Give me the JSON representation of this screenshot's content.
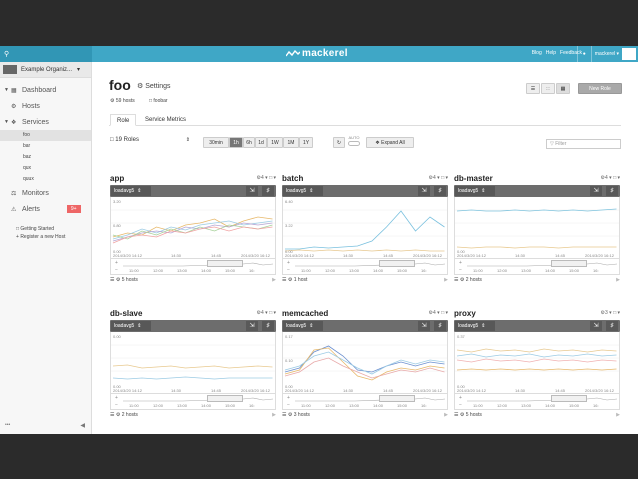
{
  "topbar": {
    "search_icon": "search-icon",
    "logo_text": "mackerel",
    "links": [
      "Blog",
      "Help",
      "Feedback"
    ],
    "user": "mackerel",
    "accent": "#3fa7c6"
  },
  "sidebar": {
    "org_name": "Example Organiz...",
    "nav": [
      {
        "label": "Dashboard",
        "icon": "dashboard-icon"
      },
      {
        "label": "Hosts",
        "icon": "hosts-icon"
      },
      {
        "label": "Services",
        "icon": "services-icon"
      }
    ],
    "services": [
      "foo",
      "bar",
      "baz",
      "qux",
      "quux"
    ],
    "monitors": "Monitors",
    "alerts": "Alerts",
    "alerts_badge": "9+",
    "getting_started": "Getting Started",
    "register_host": "Register a new Host",
    "footer": "•••"
  },
  "header": {
    "title": "foo",
    "settings": "Settings",
    "hosts": "59 hosts",
    "service": "foobar",
    "new_role": "New Role"
  },
  "tabs": [
    "Role",
    "Service Metrics"
  ],
  "toolbar": {
    "roles": "19 Roles",
    "ranges": [
      "30min",
      "1h",
      "6h",
      "1d",
      "1W",
      "1M",
      "1Y"
    ],
    "auto": "AUTO",
    "expand": "Expand All",
    "filter_placeholder": "Filter"
  },
  "panels": [
    {
      "title": "app",
      "count": "4",
      "metric": "loadavg5",
      "y": [
        "3.20",
        "0.80",
        "0.00"
      ],
      "start": "2014/3/20 14:12",
      "end": "2014/3/20 16:12",
      "ticks": [
        "14:30",
        "14:45"
      ],
      "nav": [
        "11:00",
        "12:00",
        "13:00",
        "14:00",
        "15:00",
        "16:"
      ],
      "hosts": "5 hosts"
    },
    {
      "title": "batch",
      "count": "4",
      "metric": "loadavg5",
      "y": [
        "6.40",
        "3.22",
        "0.00"
      ],
      "start": "2014/3/20 14:12",
      "end": "2014/3/20 16:12",
      "ticks": [
        "14:30",
        "14:45"
      ],
      "nav": [
        "11:00",
        "12:00",
        "13:00",
        "14:00",
        "15:00",
        "16:"
      ],
      "hosts": "1 host"
    },
    {
      "title": "db-master",
      "count": "4",
      "metric": "loadavg5",
      "y": [
        "0.00"
      ],
      "start": "2014/3/20 14:12",
      "end": "2014/3/20 16:12",
      "ticks": [
        "14:30",
        "14:45"
      ],
      "nav": [
        "11:00",
        "12:00",
        "13:00",
        "14:00",
        "15:00",
        "16:"
      ],
      "hosts": "2 hosts"
    },
    {
      "title": "db-slave",
      "count": "4",
      "metric": "loadavg5",
      "y": [
        "0.00",
        "0.00"
      ],
      "start": "2014/3/20 14:12",
      "end": "2014/3/20 16:12",
      "ticks": [
        "14:30",
        "14:45"
      ],
      "nav": [
        "11:00",
        "12:00",
        "13:00",
        "14:00",
        "15:00",
        "16:"
      ],
      "hosts": "2 hosts"
    },
    {
      "title": "memcached",
      "count": "4",
      "metric": "loadavg5",
      "y": [
        "0.17",
        "0.10",
        "0.00"
      ],
      "start": "2014/3/20 14:12",
      "end": "2014/3/20 16:12",
      "ticks": [
        "14:30",
        "14:45"
      ],
      "nav": [
        "11:00",
        "12:00",
        "13:00",
        "14:00",
        "15:00",
        "16:"
      ],
      "hosts": "3 hosts"
    },
    {
      "title": "proxy",
      "count": "3",
      "metric": "loadavg5",
      "y": [
        "0.37",
        "0.00"
      ],
      "start": "2014/3/20 14:12",
      "end": "2014/3/20 16:12",
      "ticks": [
        "14:30",
        "14:45"
      ],
      "nav": [
        "11:00",
        "12:00",
        "13:00",
        "14:00",
        "15:00",
        "16:"
      ],
      "hosts": "5 hosts"
    }
  ]
}
